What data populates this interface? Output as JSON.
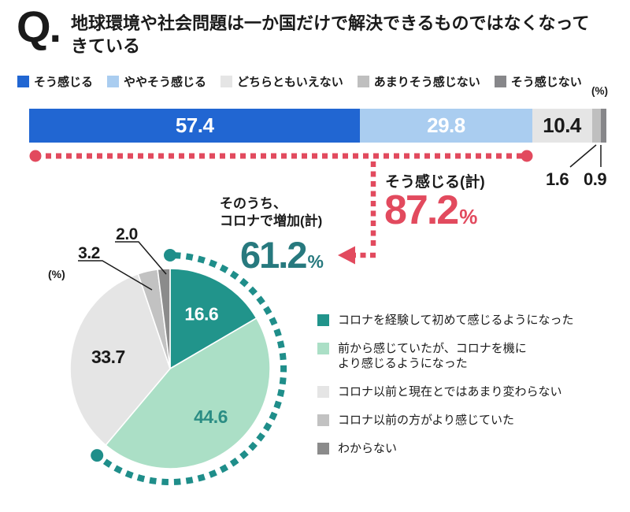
{
  "header": {
    "q_mark": "Q.",
    "title": "地球環境や社会問題は一か国だけで解決できるものではなくなってきている"
  },
  "colors": {
    "accent_red": "#e24a5e",
    "accent_teal_text": "#27797e",
    "arc_teal": "#1f8e8a",
    "text_black": "#1a1a1a"
  },
  "bar_section": {
    "unit": "(%)"
  },
  "pie_section": {
    "unit": "(%)"
  },
  "chart_data": [
    {
      "type": "bar",
      "stacked": true,
      "orientation": "horizontal",
      "unit": "%",
      "categories": [
        "そう感じる",
        "ややそう感じる",
        "どちらともいえない",
        "あまりそう感じない",
        "そう感じない"
      ],
      "values": [
        57.4,
        29.8,
        10.4,
        1.6,
        0.9
      ],
      "colors": [
        "#2166d2",
        "#aacdf0",
        "#e5e5e5",
        "#bfbfbf",
        "#87878a"
      ],
      "value_label_colors": [
        "#ffffff",
        "#ffffff",
        "#1a1a1a"
      ],
      "annotation": {
        "label": "そう感じる(計)",
        "value": "87.2",
        "unit": "%"
      }
    },
    {
      "type": "pie",
      "unit": "%",
      "categories": [
        "コロナを経験して初めて感じるようになった",
        "前から感じていたが、コロナを機に\nより感じるようになった",
        "コロナ以前と現在とではあまり変わらない",
        "コロナ以前の方がより感じていた",
        "わからない"
      ],
      "values": [
        16.6,
        44.6,
        33.7,
        3.2,
        2.0
      ],
      "colors": [
        "#21948b",
        "#abdfc6",
        "#e5e5e5",
        "#c2c2c2",
        "#8b8b8b"
      ],
      "value_label_colors": [
        "#ffffff",
        "#2b8d84",
        "#1a1a1a",
        "#1a1a1a",
        "#1a1a1a"
      ],
      "annotation": {
        "label": "そのうち、\nコロナで増加(計)",
        "value": "61.2",
        "unit": "%"
      }
    }
  ]
}
